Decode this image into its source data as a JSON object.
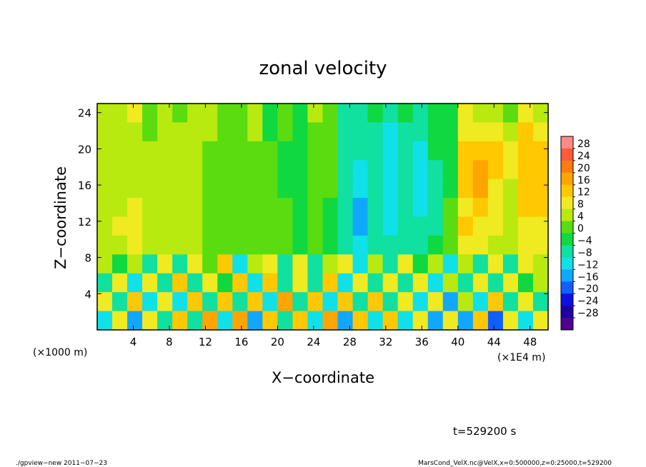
{
  "chart_data": {
    "type": "heatmap",
    "title": "zonal velocity",
    "xlabel": "X−coordinate",
    "ylabel": "Z−coordinate",
    "x_unit_left": "(×1000 m)",
    "x_unit_right": "(×1E4 m)",
    "xlim": [
      0,
      50
    ],
    "ylim": [
      0,
      25
    ],
    "x_ticks": [
      4,
      8,
      12,
      16,
      20,
      24,
      28,
      32,
      36,
      40,
      44,
      48
    ],
    "y_ticks": [
      4,
      8,
      12,
      16,
      20,
      24
    ],
    "colorbar_levels": [
      28,
      24,
      20,
      16,
      12,
      8,
      4,
      0,
      -4,
      -8,
      -12,
      -16,
      -20,
      -24,
      -28
    ],
    "colorbar_labels": [
      "28",
      "24",
      "20",
      "16",
      "12",
      "8",
      "4",
      "0",
      "−4",
      "−8",
      "−12",
      "−16",
      "−20",
      "−24",
      "−28"
    ],
    "colorbar_colors": [
      "#ff8a8a",
      "#ff5a3a",
      "#ff7a10",
      "#ffa500",
      "#ffc800",
      "#f0ea20",
      "#b8ea10",
      "#5adc10",
      "#10d840",
      "#10e0a0",
      "#10e0e8",
      "#10a8ff",
      "#1060ff",
      "#1010e0",
      "#2000a0",
      "#500090"
    ],
    "values": [
      [
        6,
        4,
        8,
        2,
        6,
        3,
        6,
        4,
        2,
        3,
        5,
        -2,
        0,
        -4,
        4,
        3,
        -6,
        -6,
        -4,
        -8,
        -4,
        -6,
        -2,
        -4,
        8,
        4,
        6,
        3,
        8,
        5
      ],
      [
        6,
        5,
        7,
        3,
        5,
        4,
        5,
        4,
        3,
        3,
        4,
        -1,
        0,
        -3,
        3,
        2,
        -7,
        -7,
        -5,
        -9,
        -5,
        -8,
        -3,
        -4,
        10,
        8,
        9,
        6,
        12,
        10
      ],
      [
        5,
        5,
        6,
        4,
        5,
        4,
        4,
        3,
        3,
        3,
        3,
        0,
        -1,
        -2,
        2,
        1,
        -7,
        -8,
        -6,
        -10,
        -6,
        -10,
        -4,
        -3,
        12,
        12,
        12,
        8,
        14,
        13
      ],
      [
        5,
        5,
        6,
        4,
        5,
        4,
        4,
        3,
        3,
        3,
        3,
        1,
        -1,
        -2,
        1,
        0,
        -7,
        -9,
        -7,
        -10,
        -7,
        -12,
        -5,
        -2,
        14,
        16,
        12,
        8,
        15,
        14
      ],
      [
        5,
        6,
        7,
        4,
        5,
        4,
        4,
        3,
        3,
        3,
        2,
        1,
        -1,
        -2,
        1,
        0,
        -7,
        -10,
        -8,
        -10,
        -8,
        -12,
        -6,
        -1,
        12,
        16,
        11,
        7,
        14,
        13
      ],
      [
        6,
        7,
        9,
        5,
        5,
        4,
        4,
        3,
        3,
        2,
        2,
        1,
        0,
        -2,
        0,
        -1,
        -8,
        -14,
        -8,
        -10,
        -8,
        -10,
        -6,
        0,
        10,
        12,
        10,
        6,
        12,
        12
      ],
      [
        7,
        8,
        10,
        6,
        5,
        4,
        4,
        3,
        3,
        2,
        2,
        1,
        0,
        -2,
        0,
        -1,
        -8,
        -14,
        -8,
        -9,
        -8,
        -8,
        -5,
        0,
        12,
        10,
        9,
        5,
        10,
        11
      ],
      [
        6,
        6,
        8,
        5,
        4,
        4,
        4,
        3,
        3,
        2,
        2,
        1,
        0,
        -1,
        0,
        -1,
        -6,
        -9,
        -6,
        -7,
        -6,
        -6,
        -4,
        0,
        8,
        8,
        7,
        4,
        8,
        9
      ],
      [
        4,
        -4,
        6,
        -6,
        8,
        -8,
        10,
        0,
        12,
        -10,
        4,
        8,
        -6,
        10,
        -8,
        4,
        10,
        -10,
        6,
        -8,
        8,
        -4,
        6,
        -10,
        6,
        -8,
        10,
        -6,
        8,
        4
      ],
      [
        -6,
        10,
        -10,
        8,
        -8,
        12,
        -6,
        10,
        -4,
        14,
        -10,
        12,
        -8,
        10,
        -6,
        12,
        -10,
        8,
        -8,
        10,
        -6,
        8,
        -10,
        6,
        -8,
        10,
        -6,
        8,
        -4,
        6
      ],
      [
        8,
        -8,
        12,
        -10,
        10,
        -12,
        12,
        -6,
        14,
        -8,
        12,
        -10,
        16,
        -6,
        12,
        -12,
        14,
        -8,
        12,
        -6,
        10,
        -12,
        8,
        -14,
        6,
        -10,
        12,
        -8,
        10,
        -6
      ],
      [
        -12,
        8,
        -16,
        10,
        -8,
        12,
        -6,
        16,
        -10,
        18,
        -14,
        12,
        -8,
        14,
        -12,
        16,
        -14,
        12,
        -10,
        14,
        -12,
        10,
        -16,
        8,
        -14,
        12,
        -18,
        10,
        -12,
        8
      ]
    ]
  },
  "footer": {
    "time_label": "t=529200 s",
    "left": "./gpview−new   2011−07−23",
    "right": "MarsCond_VelX.nc@VelX,x=0:500000,z=0:25000,t=529200"
  }
}
